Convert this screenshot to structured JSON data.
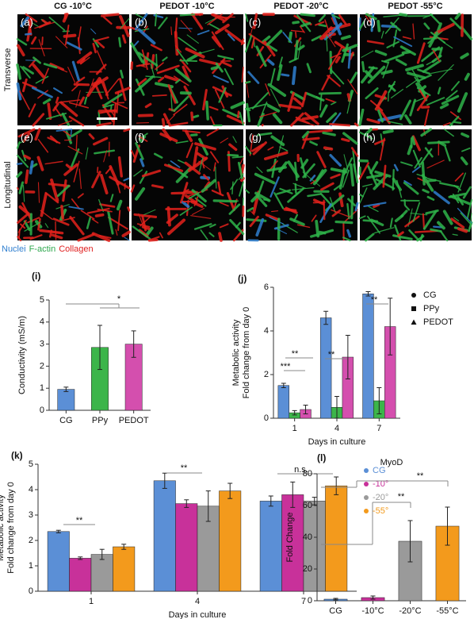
{
  "figure": {
    "columns": [
      "CG -10°C",
      "PEDOT -10°C",
      "PEDOT -20°C",
      "PEDOT -55°C"
    ],
    "rows": [
      "Transverse",
      "Longitudinal"
    ],
    "panels": [
      "(a)",
      "(b)",
      "(c)",
      "(d)",
      "(e)",
      "(f)",
      "(g)",
      "(h)"
    ],
    "stain_legend": [
      {
        "name": "Nuclei",
        "color": "#2f7fd0"
      },
      {
        "name": "F-actin",
        "color": "#2fa84f"
      },
      {
        "name": "Collagen",
        "color": "#e02020"
      }
    ]
  },
  "chart_data": [
    {
      "type": "bar",
      "panel_label": "(i)",
      "ylabel": "Conductivity (mS/m)",
      "categories": [
        "CG",
        "PPy",
        "PEDOT"
      ],
      "values": [
        0.95,
        2.85,
        3.0
      ],
      "errors": [
        0.1,
        1.0,
        0.6
      ],
      "colors": [
        "#5b8fd6",
        "#3cb54a",
        "#d44fae"
      ],
      "ylim": [
        0,
        5
      ],
      "yticks": [
        0,
        1,
        2,
        3,
        4,
        5
      ],
      "annotations": [
        "*"
      ]
    },
    {
      "type": "bar",
      "panel_label": "(j)",
      "ylabel": [
        "Metabolic activity",
        "Fold change from day 0"
      ],
      "xlabel": "Days in culture",
      "categories": [
        "1",
        "4",
        "7"
      ],
      "series": [
        {
          "name": "CG",
          "color": "#5b8fd6",
          "marker": "circle",
          "values": [
            1.5,
            4.6,
            5.7
          ],
          "errors": [
            0.1,
            0.3,
            0.1
          ]
        },
        {
          "name": "PPy",
          "color": "#3cb54a",
          "marker": "square",
          "values": [
            0.25,
            0.5,
            0.8
          ],
          "errors": [
            0.1,
            0.5,
            0.6
          ]
        },
        {
          "name": "PEDOT",
          "color": "#d44fae",
          "marker": "triangle",
          "values": [
            0.4,
            2.8,
            4.2
          ],
          "errors": [
            0.2,
            1.0,
            1.3
          ]
        }
      ],
      "ylim": [
        0,
        6
      ],
      "yticks": [
        0,
        2,
        4,
        6
      ],
      "legend": "right",
      "annotations": [
        "**",
        "***",
        "**",
        "**"
      ]
    },
    {
      "type": "bar",
      "panel_label": "(k)",
      "ylabel": [
        "Metabolic activity",
        "Fold change from day 0"
      ],
      "xlabel": "Days in culture",
      "categories": [
        "1",
        "4",
        "7"
      ],
      "series": [
        {
          "name": "CG",
          "color": "#5b8fd6",
          "values": [
            2.35,
            4.35,
            3.55
          ],
          "errors": [
            0.05,
            0.3,
            0.2
          ]
        },
        {
          "name": "-10°",
          "color": "#c8319a",
          "values": [
            1.3,
            3.45,
            3.8
          ],
          "errors": [
            0.05,
            0.15,
            0.5
          ]
        },
        {
          "name": "-20°",
          "color": "#9a9a9a",
          "values": [
            1.45,
            3.35,
            3.55
          ],
          "errors": [
            0.2,
            0.6,
            0.15
          ]
        },
        {
          "name": "-55°",
          "color": "#f39a1c",
          "values": [
            1.75,
            3.95,
            4.15
          ],
          "errors": [
            0.1,
            0.3,
            0.35
          ]
        }
      ],
      "ylim": [
        0,
        5
      ],
      "yticks": [
        0,
        1,
        2,
        3,
        4,
        5
      ],
      "legend": "right",
      "annotations": [
        "**",
        "**",
        "n.s."
      ]
    },
    {
      "type": "bar",
      "panel_label": "(l)",
      "title": "MyoD",
      "ylabel": "Fold Change",
      "categories": [
        "CG",
        "-10°C",
        "-20°C",
        "-55°C"
      ],
      "values": [
        1,
        2,
        37.5,
        47
      ],
      "errors": [
        0.5,
        1,
        13,
        12
      ],
      "colors": [
        "#5b8fd6",
        "#c8319a",
        "#9a9a9a",
        "#f39a1c"
      ],
      "ylim": [
        0,
        80
      ],
      "yticks": [
        0,
        20,
        40,
        60,
        80
      ],
      "annotations": [
        "**",
        "**"
      ]
    }
  ]
}
